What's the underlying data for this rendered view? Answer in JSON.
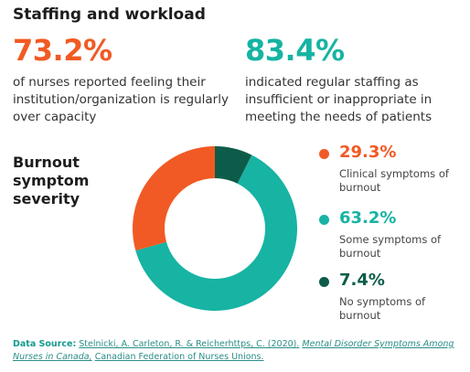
{
  "header": {
    "title": "Staffing and workload"
  },
  "stats": [
    {
      "value": "73.2%",
      "text": "of nurses reported feeling their institution/organization is regularly over capacity"
    },
    {
      "value": "83.4%",
      "text": "indicated regular staffing as insufficient or inappropriate in meeting the needs of patients"
    }
  ],
  "chart_data": {
    "type": "pie",
    "title": "Burnout symptom severity",
    "categories": [
      "Clinical symptoms of burnout",
      "Some symptoms of burnout",
      "No symptoms of burnout"
    ],
    "values": [
      29.3,
      63.2,
      7.4
    ],
    "value_labels": [
      "29.3%",
      "63.2%",
      "7.4%"
    ],
    "colors": [
      "#f15a24",
      "#17b3a3",
      "#0d5c4a"
    ],
    "legend_position": "right"
  },
  "source": {
    "label": "Data Source:",
    "authors": "Stelnicki, A. Carleton, R. & Reicherhttps, C. (2020).",
    "work": "Mental Disorder Symptoms Among Nurses in Canada,",
    "publisher": "Canadian Federation of Nurses Unions."
  }
}
